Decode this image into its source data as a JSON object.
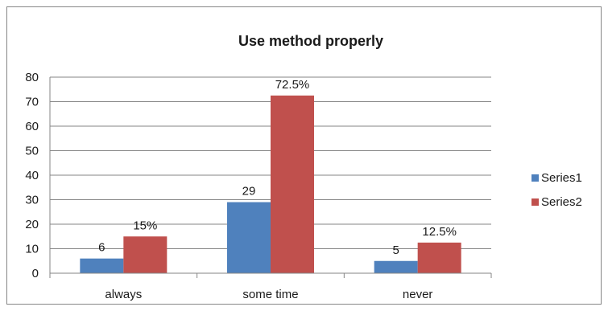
{
  "chart_data": {
    "type": "bar",
    "title": "Use method properly",
    "categories": [
      "always",
      "some time",
      "never"
    ],
    "series": [
      {
        "name": "Series1",
        "values": [
          6,
          29,
          5
        ],
        "labels": [
          "6",
          "29",
          "5"
        ],
        "color": "#4f81bd"
      },
      {
        "name": "Series2",
        "values": [
          15,
          72.5,
          12.5
        ],
        "labels": [
          "15%",
          "72.5%",
          "12.5%"
        ],
        "color": "#c0504d"
      }
    ],
    "xlabel": "",
    "ylabel": "",
    "ylim": [
      0,
      80
    ],
    "yticks": [
      0,
      10,
      20,
      30,
      40,
      50,
      60,
      70,
      80
    ],
    "grid": true,
    "legend_position": "right"
  }
}
